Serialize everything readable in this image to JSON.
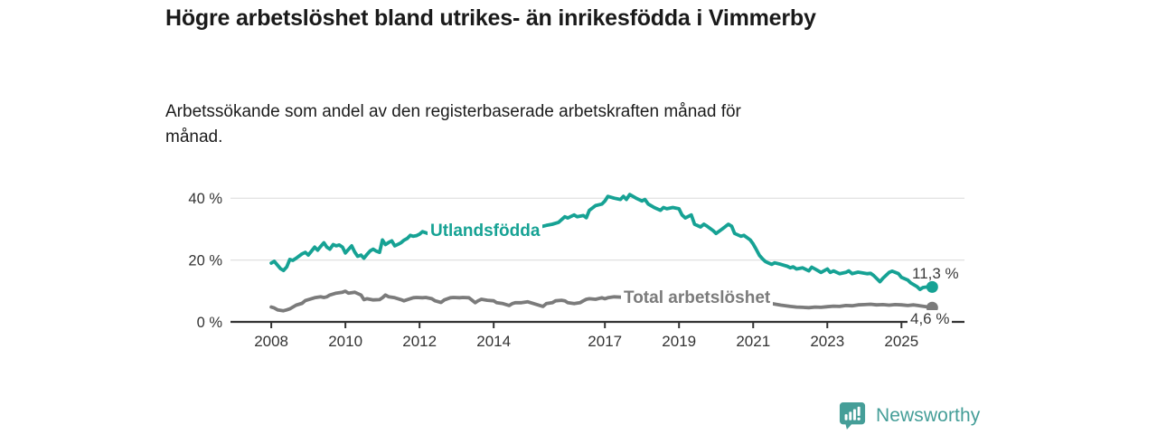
{
  "footer": {
    "brand": "Newsworthy",
    "brand_color": "#459e98"
  },
  "chart_data": {
    "type": "line",
    "title": "Högre arbetslöshet bland utrikes- än inrikesfödda i Vimmerby",
    "subtitle": "Arbetssökande som andel av den registerbaserade arbetskraften månad för månad.",
    "unit": "%",
    "grid": "horizontal-only",
    "legend_position": "inline-labels",
    "xlim": [
      2006.9,
      2026.7
    ],
    "ylim": [
      0,
      42.7
    ],
    "x_tick_values": [
      2008,
      2010,
      2012,
      2014,
      2017,
      2019,
      2021,
      2023,
      2025
    ],
    "x_tick_labels": [
      "2008",
      "2010",
      "2012",
      "2014",
      "2017",
      "2019",
      "2021",
      "2023",
      "2025"
    ],
    "y_tick_values": [
      0,
      20,
      40
    ],
    "y_tick_labels": [
      "0 %",
      "20 %",
      "40 %"
    ],
    "series": [
      {
        "name": "Utlandsfödda",
        "color": "#16a294",
        "end_label": "11,3 %",
        "end_value": 11.3,
        "points": [
          [
            2008.0,
            19.0
          ],
          [
            2008.08,
            19.6
          ],
          [
            2008.17,
            18.3
          ],
          [
            2008.25,
            17.2
          ],
          [
            2008.33,
            16.6
          ],
          [
            2008.42,
            17.8
          ],
          [
            2008.5,
            20.2
          ],
          [
            2008.58,
            19.9
          ],
          [
            2008.67,
            20.6
          ],
          [
            2008.75,
            21.3
          ],
          [
            2008.83,
            22.0
          ],
          [
            2008.92,
            22.5
          ],
          [
            2009.0,
            21.6
          ],
          [
            2009.08,
            22.8
          ],
          [
            2009.17,
            24.2
          ],
          [
            2009.25,
            23.2
          ],
          [
            2009.33,
            24.4
          ],
          [
            2009.42,
            25.6
          ],
          [
            2009.5,
            24.2
          ],
          [
            2009.58,
            23.5
          ],
          [
            2009.67,
            25.0
          ],
          [
            2009.75,
            24.6
          ],
          [
            2009.83,
            24.9
          ],
          [
            2009.92,
            24.2
          ],
          [
            2010.0,
            22.3
          ],
          [
            2010.08,
            23.4
          ],
          [
            2010.17,
            24.6
          ],
          [
            2010.25,
            22.6
          ],
          [
            2010.33,
            21.2
          ],
          [
            2010.42,
            21.6
          ],
          [
            2010.5,
            20.6
          ],
          [
            2010.58,
            21.8
          ],
          [
            2010.67,
            23.0
          ],
          [
            2010.75,
            23.5
          ],
          [
            2010.83,
            22.9
          ],
          [
            2010.92,
            22.5
          ],
          [
            2011.0,
            26.5
          ],
          [
            2011.08,
            25.0
          ],
          [
            2011.17,
            25.7
          ],
          [
            2011.25,
            26.2
          ],
          [
            2011.33,
            24.6
          ],
          [
            2011.42,
            25.1
          ],
          [
            2011.5,
            25.6
          ],
          [
            2011.58,
            26.4
          ],
          [
            2011.67,
            27.0
          ],
          [
            2011.75,
            28.0
          ],
          [
            2011.83,
            27.7
          ],
          [
            2011.92,
            27.9
          ],
          [
            2012.0,
            28.4
          ],
          [
            2012.08,
            29.2
          ],
          [
            2012.25,
            28.5
          ],
          [
            2012.42,
            28.1
          ],
          [
            2012.58,
            28.8
          ],
          [
            2012.75,
            28.3
          ],
          [
            2012.92,
            28.7
          ],
          [
            2013.08,
            29.0
          ],
          [
            2013.25,
            28.5
          ],
          [
            2013.42,
            29.1
          ],
          [
            2013.58,
            29.4
          ],
          [
            2013.75,
            29.1
          ],
          [
            2013.92,
            29.6
          ],
          [
            2014.08,
            30.0
          ],
          [
            2014.25,
            29.5
          ],
          [
            2014.42,
            30.1
          ],
          [
            2014.58,
            30.4
          ],
          [
            2014.75,
            30.0
          ],
          [
            2014.92,
            30.6
          ],
          [
            2015.08,
            31.0
          ],
          [
            2015.25,
            30.7
          ],
          [
            2015.42,
            31.2
          ],
          [
            2015.58,
            31.6
          ],
          [
            2015.75,
            32.2
          ],
          [
            2015.92,
            34.0
          ],
          [
            2016.0,
            33.6
          ],
          [
            2016.17,
            34.6
          ],
          [
            2016.25,
            34.0
          ],
          [
            2016.42,
            34.4
          ],
          [
            2016.5,
            33.7
          ],
          [
            2016.58,
            36.1
          ],
          [
            2016.75,
            37.6
          ],
          [
            2016.92,
            38.1
          ],
          [
            2017.0,
            39.1
          ],
          [
            2017.08,
            40.6
          ],
          [
            2017.25,
            40.0
          ],
          [
            2017.42,
            39.6
          ],
          [
            2017.5,
            40.6
          ],
          [
            2017.58,
            39.6
          ],
          [
            2017.67,
            41.2
          ],
          [
            2017.83,
            40.1
          ],
          [
            2018.0,
            39.1
          ],
          [
            2018.08,
            39.6
          ],
          [
            2018.17,
            38.1
          ],
          [
            2018.33,
            37.0
          ],
          [
            2018.5,
            36.1
          ],
          [
            2018.58,
            37.0
          ],
          [
            2018.67,
            36.6
          ],
          [
            2018.83,
            37.0
          ],
          [
            2019.0,
            36.6
          ],
          [
            2019.08,
            34.6
          ],
          [
            2019.17,
            33.6
          ],
          [
            2019.33,
            34.6
          ],
          [
            2019.42,
            31.6
          ],
          [
            2019.58,
            30.7
          ],
          [
            2019.67,
            31.6
          ],
          [
            2019.75,
            31.0
          ],
          [
            2019.92,
            29.5
          ],
          [
            2020.0,
            28.6
          ],
          [
            2020.17,
            30.1
          ],
          [
            2020.33,
            31.6
          ],
          [
            2020.42,
            30.9
          ],
          [
            2020.5,
            28.6
          ],
          [
            2020.67,
            27.7
          ],
          [
            2020.75,
            28.0
          ],
          [
            2020.92,
            26.5
          ],
          [
            2021.0,
            25.2
          ],
          [
            2021.08,
            23.5
          ],
          [
            2021.17,
            21.5
          ],
          [
            2021.25,
            20.4
          ],
          [
            2021.33,
            19.5
          ],
          [
            2021.42,
            19.0
          ],
          [
            2021.5,
            18.6
          ],
          [
            2021.58,
            19.1
          ],
          [
            2021.75,
            18.6
          ],
          [
            2021.92,
            18.0
          ],
          [
            2022.0,
            17.5
          ],
          [
            2022.08,
            17.8
          ],
          [
            2022.17,
            17.1
          ],
          [
            2022.33,
            17.5
          ],
          [
            2022.5,
            16.5
          ],
          [
            2022.58,
            17.7
          ],
          [
            2022.67,
            17.1
          ],
          [
            2022.83,
            16.0
          ],
          [
            2023.0,
            17.1
          ],
          [
            2023.08,
            16.0
          ],
          [
            2023.17,
            16.5
          ],
          [
            2023.33,
            15.6
          ],
          [
            2023.5,
            16.0
          ],
          [
            2023.58,
            16.5
          ],
          [
            2023.67,
            15.6
          ],
          [
            2023.83,
            16.1
          ],
          [
            2023.92,
            15.9
          ],
          [
            2024.08,
            15.6
          ],
          [
            2024.17,
            15.7
          ],
          [
            2024.25,
            15.0
          ],
          [
            2024.42,
            13.0
          ],
          [
            2024.5,
            14.1
          ],
          [
            2024.67,
            16.0
          ],
          [
            2024.75,
            16.4
          ],
          [
            2024.92,
            15.6
          ],
          [
            2025.0,
            14.4
          ],
          [
            2025.17,
            13.5
          ],
          [
            2025.25,
            12.6
          ],
          [
            2025.42,
            11.4
          ],
          [
            2025.5,
            10.5
          ],
          [
            2025.58,
            11.1
          ],
          [
            2025.75,
            11.4
          ],
          [
            2025.83,
            11.3
          ]
        ]
      },
      {
        "name": "Total arbetslöshet",
        "color": "#7b7b7b",
        "end_label": "4,6 %",
        "end_value": 4.6,
        "points": [
          [
            2008.0,
            4.8
          ],
          [
            2008.08,
            4.5
          ],
          [
            2008.17,
            3.9
          ],
          [
            2008.33,
            3.6
          ],
          [
            2008.42,
            3.9
          ],
          [
            2008.5,
            4.2
          ],
          [
            2008.67,
            5.4
          ],
          [
            2008.83,
            6.0
          ],
          [
            2008.92,
            6.9
          ],
          [
            2009.0,
            7.2
          ],
          [
            2009.17,
            7.8
          ],
          [
            2009.33,
            8.1
          ],
          [
            2009.42,
            7.9
          ],
          [
            2009.5,
            8.1
          ],
          [
            2009.58,
            8.7
          ],
          [
            2009.75,
            9.3
          ],
          [
            2009.92,
            9.6
          ],
          [
            2010.0,
            9.9
          ],
          [
            2010.08,
            9.3
          ],
          [
            2010.25,
            9.6
          ],
          [
            2010.42,
            8.7
          ],
          [
            2010.5,
            7.2
          ],
          [
            2010.58,
            7.5
          ],
          [
            2010.75,
            7.1
          ],
          [
            2010.92,
            7.2
          ],
          [
            2011.0,
            7.8
          ],
          [
            2011.08,
            8.7
          ],
          [
            2011.17,
            8.1
          ],
          [
            2011.33,
            7.8
          ],
          [
            2011.5,
            7.2
          ],
          [
            2011.58,
            6.8
          ],
          [
            2011.67,
            7.2
          ],
          [
            2011.83,
            7.8
          ],
          [
            2011.92,
            7.9
          ],
          [
            2012.08,
            7.8
          ],
          [
            2012.17,
            7.9
          ],
          [
            2012.33,
            7.5
          ],
          [
            2012.42,
            6.8
          ],
          [
            2012.58,
            6.3
          ],
          [
            2012.67,
            7.1
          ],
          [
            2012.83,
            7.8
          ],
          [
            2012.92,
            7.9
          ],
          [
            2013.08,
            7.8
          ],
          [
            2013.17,
            7.9
          ],
          [
            2013.33,
            7.8
          ],
          [
            2013.5,
            6.2
          ],
          [
            2013.58,
            6.8
          ],
          [
            2013.67,
            7.3
          ],
          [
            2013.83,
            7.0
          ],
          [
            2014.0,
            6.8
          ],
          [
            2014.08,
            6.2
          ],
          [
            2014.25,
            5.9
          ],
          [
            2014.42,
            5.3
          ],
          [
            2014.5,
            5.9
          ],
          [
            2014.58,
            6.2
          ],
          [
            2014.75,
            6.2
          ],
          [
            2014.92,
            6.5
          ],
          [
            2015.0,
            6.2
          ],
          [
            2015.08,
            5.9
          ],
          [
            2015.25,
            5.3
          ],
          [
            2015.33,
            5.0
          ],
          [
            2015.42,
            5.9
          ],
          [
            2015.58,
            6.2
          ],
          [
            2015.67,
            6.8
          ],
          [
            2015.83,
            7.0
          ],
          [
            2015.92,
            6.8
          ],
          [
            2016.0,
            6.2
          ],
          [
            2016.17,
            5.9
          ],
          [
            2016.33,
            6.2
          ],
          [
            2016.42,
            6.8
          ],
          [
            2016.5,
            7.3
          ],
          [
            2016.58,
            7.5
          ],
          [
            2016.75,
            7.3
          ],
          [
            2016.92,
            7.8
          ],
          [
            2017.0,
            7.5
          ],
          [
            2017.08,
            7.8
          ],
          [
            2017.25,
            8.1
          ],
          [
            2017.42,
            8.0
          ],
          [
            2017.5,
            7.8
          ],
          [
            2017.75,
            7.5
          ],
          [
            2018.0,
            7.3
          ],
          [
            2018.25,
            7.0
          ],
          [
            2018.5,
            6.8
          ],
          [
            2018.75,
            6.6
          ],
          [
            2019.0,
            6.5
          ],
          [
            2019.25,
            6.4
          ],
          [
            2019.5,
            6.3
          ],
          [
            2019.75,
            6.5
          ],
          [
            2020.0,
            7.0
          ],
          [
            2020.25,
            7.8
          ],
          [
            2020.5,
            8.0
          ],
          [
            2020.75,
            7.7
          ],
          [
            2021.0,
            7.2
          ],
          [
            2021.25,
            6.6
          ],
          [
            2021.5,
            5.9
          ],
          [
            2021.75,
            5.4
          ],
          [
            2022.0,
            5.0
          ],
          [
            2022.17,
            4.8
          ],
          [
            2022.33,
            4.7
          ],
          [
            2022.5,
            4.6
          ],
          [
            2022.67,
            4.8
          ],
          [
            2022.83,
            4.7
          ],
          [
            2023.0,
            4.9
          ],
          [
            2023.17,
            5.1
          ],
          [
            2023.33,
            5.0
          ],
          [
            2023.5,
            5.3
          ],
          [
            2023.67,
            5.2
          ],
          [
            2023.83,
            5.5
          ],
          [
            2024.0,
            5.6
          ],
          [
            2024.17,
            5.7
          ],
          [
            2024.33,
            5.5
          ],
          [
            2024.5,
            5.6
          ],
          [
            2024.67,
            5.4
          ],
          [
            2024.83,
            5.6
          ],
          [
            2025.0,
            5.5
          ],
          [
            2025.17,
            5.3
          ],
          [
            2025.33,
            5.5
          ],
          [
            2025.5,
            5.2
          ],
          [
            2025.67,
            4.9
          ],
          [
            2025.83,
            4.6
          ]
        ]
      }
    ]
  }
}
